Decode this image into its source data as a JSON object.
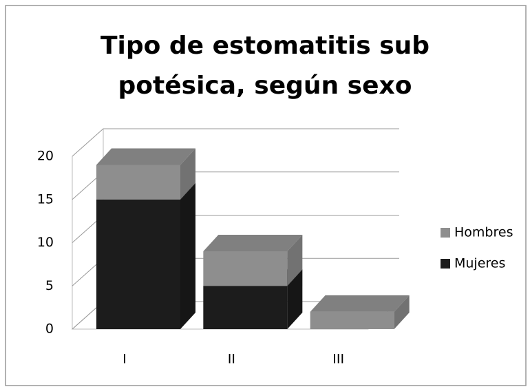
{
  "chart_data": {
    "type": "bar",
    "stacked": true,
    "title": "Tipo de estomatitis sub potésica, según sexo",
    "categories": [
      "I",
      "II",
      "III"
    ],
    "series": [
      {
        "name": "Mujeres",
        "color": "#1c1c1c",
        "values": [
          15,
          5,
          0
        ]
      },
      {
        "name": "Hombres",
        "color": "#8e8e8e",
        "values": [
          4,
          4,
          2
        ]
      }
    ],
    "ylim": [
      0,
      20
    ],
    "yticks": [
      0,
      5,
      10,
      15,
      20
    ],
    "grid": true,
    "legend": "right"
  }
}
